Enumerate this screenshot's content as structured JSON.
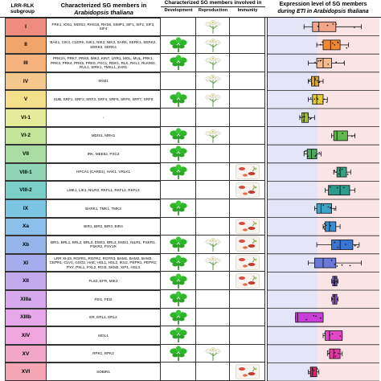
{
  "headers": {
    "subgroup": "LRR-RLK subgroup",
    "members_line1": "Characterized SG members in",
    "members_line2": "Arabidopsis thaliana",
    "involved": "Characterized SG members involved in",
    "development": "Development",
    "reproduction": "Reproduction",
    "immunity": "Immunity",
    "expression_line1": "Expression level of SG members",
    "expression_line2": "during ETI in Arabidopsis thaliana"
  },
  "colors": {
    "plot_blue_bg": "#e4e6f7",
    "plot_pink_bg": "#fbe4e6",
    "leaf_green": "#2fb52c",
    "flower_white": "#f1f1e6",
    "immunity_red": "#d84a3a"
  },
  "rows": [
    {
      "sg": "I",
      "color": "#ee8c80",
      "members": "FRK1, IOS1, MDIS2, RHS16, RHS6, SIMP1, SIF1, SIF2, SIF3, SIF4",
      "dev": false,
      "rep": true,
      "imm": false,
      "box": {
        "color": "#f3a58a",
        "wl": 0.32,
        "q1": 0.4,
        "med": 0.46,
        "q3": 0.62,
        "wh": 0.86
      }
    },
    {
      "sg": "II",
      "color": "#f0a46a",
      "members": "BAK1, CIK4, CLERK, NIK1, NIK2, NIK3, SARK, SERK1, SERK2, SERK3, SERK4",
      "dev": true,
      "rep": true,
      "imm": false,
      "box": {
        "color": "#f08a32",
        "wl": 0.44,
        "q1": 0.5,
        "med": 0.57,
        "q3": 0.66,
        "wh": 0.74
      }
    },
    {
      "sg": "III",
      "color": "#f6b27c",
      "members": "PRK2A, PRK7, PRK8, IMK2, KIN7, LRR1, MOL, MUL, PRK1, PRK3, PRK4, PRK5, PRK6, PXC1, RDK1, RLK, RKL1, RLK902, RUL1, SIRK1, TMKL1, ZAR1",
      "dev": true,
      "rep": true,
      "imm": false,
      "box": {
        "color": "#f5bb91",
        "wl": 0.36,
        "q1": 0.44,
        "med": 0.5,
        "q3": 0.58,
        "wh": 0.7
      }
    },
    {
      "sg": "IV",
      "color": "#f4c78c",
      "members": "SKM1",
      "dev": false,
      "rep": true,
      "imm": false,
      "box": {
        "color": "#d7a532",
        "wl": 0.36,
        "q1": 0.39,
        "med": 0.42,
        "q3": 0.46,
        "wh": 0.5
      }
    },
    {
      "sg": "V",
      "color": "#f4df8a",
      "members": "SUB, SRF1, SRF2, SRF3, SRF4, SRF5, SRF6, SRF7, SRF8",
      "dev": true,
      "rep": true,
      "imm": false,
      "box": {
        "color": "#e3cc33",
        "wl": 0.36,
        "q1": 0.4,
        "med": 0.44,
        "q3": 0.5,
        "wh": 0.54
      }
    },
    {
      "sg": "VI-1",
      "color": "#e4ec9a",
      "members": "-",
      "dev": false,
      "rep": false,
      "imm": false,
      "box": {
        "color": "#a4c436",
        "wl": 0.28,
        "q1": 0.3,
        "med": 0.32,
        "q3": 0.36,
        "wh": 0.42
      }
    },
    {
      "sg": "VI-2",
      "color": "#c4e49a",
      "members": "MDIS1, MRH1",
      "dev": true,
      "rep": true,
      "imm": false,
      "box": {
        "color": "#5fb84a",
        "wl": 0.58,
        "q1": 0.6,
        "med": 0.63,
        "q3": 0.73,
        "wh": 0.8
      }
    },
    {
      "sg": "VII",
      "color": "#a8dca2",
      "members": "IRK, MEE62, PXC2",
      "dev": true,
      "rep": false,
      "imm": false,
      "box": {
        "color": "#4aab5e",
        "wl": 0.32,
        "q1": 0.35,
        "med": 0.39,
        "q3": 0.44,
        "wh": 0.48
      }
    },
    {
      "sg": "VIII-1",
      "color": "#8fd4b4",
      "members": "HPCA1 (CARD1), HAK1, VRLK1",
      "dev": true,
      "rep": false,
      "imm": true,
      "box": {
        "color": "#3aa083",
        "wl": 0.6,
        "q1": 0.63,
        "med": 0.66,
        "q3": 0.72,
        "wh": 0.76
      }
    },
    {
      "sg": "VIII-2",
      "color": "#7ccfc6",
      "members": "LMK1, LIK1, NILR2, RKFL1, RKFL2, RKFL3",
      "dev": false,
      "rep": false,
      "imm": true,
      "box": {
        "color": "#2e9a8e",
        "wl": 0.52,
        "q1": 0.55,
        "med": 0.66,
        "q3": 0.75,
        "wh": 0.8
      }
    },
    {
      "sg": "IX",
      "color": "#7cc6e4",
      "members": "BARK1, TMK1, TMK3",
      "dev": true,
      "rep": false,
      "imm": false,
      "box": {
        "color": "#3aa3c8",
        "wl": 0.42,
        "q1": 0.44,
        "med": 0.48,
        "q3": 0.58,
        "wh": 0.62
      }
    },
    {
      "sg": "Xa",
      "color": "#8cc0ea",
      "members": "BIR1, BIR2, BIR3, BIR4",
      "dev": false,
      "rep": false,
      "imm": true,
      "box": {
        "color": "#3a8ed2",
        "wl": 0.5,
        "q1": 0.52,
        "med": 0.56,
        "q3": 0.62,
        "wh": 0.66
      }
    },
    {
      "sg": "Xb",
      "color": "#94b4ea",
      "members": "BRI1, BRL1, BRL2, BRL3, EMS1, BRL3, EMS1, NILR1, PSKR1, PSKR2, PSY1R",
      "dev": true,
      "rep": true,
      "imm": true,
      "box": {
        "color": "#3a76d6",
        "wl": 0.44,
        "q1": 0.58,
        "med": 0.66,
        "q3": 0.78,
        "wh": 0.84
      }
    },
    {
      "sg": "XI",
      "color": "#a6acec",
      "members": "LRR XI-23, RGFR1, RGFR2, RGFR3, BAM1, BAM2, BAM3, CEPR1, CLV1, GSO2, HAE, HSL1, HSL2, IKU2, PEPR1, PEPR2, PXY, PXL1, PXL2, RGI3, SKM2, XIP1, HSL3",
      "dev": true,
      "rep": true,
      "imm": true,
      "box": {
        "color": "#6a78d8",
        "wl": 0.36,
        "q1": 0.42,
        "med": 0.5,
        "q3": 0.62,
        "wh": 0.86
      }
    },
    {
      "sg": "XII",
      "color": "#c2aaec",
      "members": "FLS2, EFR, MIK2",
      "dev": true,
      "rep": false,
      "imm": true,
      "box": {
        "color": "#7a52c8",
        "wl": 0.58,
        "q1": 0.59,
        "med": 0.61,
        "q3": 0.63,
        "wh": 0.64
      }
    },
    {
      "sg": "XIIIa",
      "color": "#d6a8ec",
      "members": "FEI1, FEI2",
      "dev": true,
      "rep": false,
      "imm": false,
      "box": {
        "color": "#a24ad6",
        "wl": 0.58,
        "q1": 0.59,
        "med": 0.61,
        "q3": 0.63,
        "wh": 0.64
      }
    },
    {
      "sg": "XIIIb",
      "color": "#e6a8ea",
      "members": "ER, ERL1, ERL2",
      "dev": true,
      "rep": false,
      "imm": false,
      "box": {
        "color": "#c83ed8",
        "wl": 0.24,
        "q1": 0.24,
        "med": 0.26,
        "q3": 0.5,
        "wh": 0.5
      }
    },
    {
      "sg": "XIV",
      "color": "#f0a6de",
      "members": "MOL1",
      "dev": true,
      "rep": false,
      "imm": false,
      "box": {
        "color": "#e048c8",
        "wl": 0.5,
        "q1": 0.52,
        "med": 0.56,
        "q3": 0.68,
        "wh": 0.68
      }
    },
    {
      "sg": "XV",
      "color": "#f2a6c8",
      "members": "RPK1, RPK2",
      "dev": true,
      "rep": true,
      "imm": false,
      "box": {
        "color": "#e03aa0",
        "wl": 0.54,
        "q1": 0.56,
        "med": 0.6,
        "q3": 0.66,
        "wh": 0.68
      }
    },
    {
      "sg": "XVI",
      "color": "#f4a6b4",
      "members": "SOBIR1",
      "dev": false,
      "rep": false,
      "imm": true,
      "box": {
        "color": "#d8286a",
        "wl": 0.36,
        "q1": 0.38,
        "med": 0.4,
        "q3": 0.44,
        "wh": 0.46
      }
    }
  ]
}
